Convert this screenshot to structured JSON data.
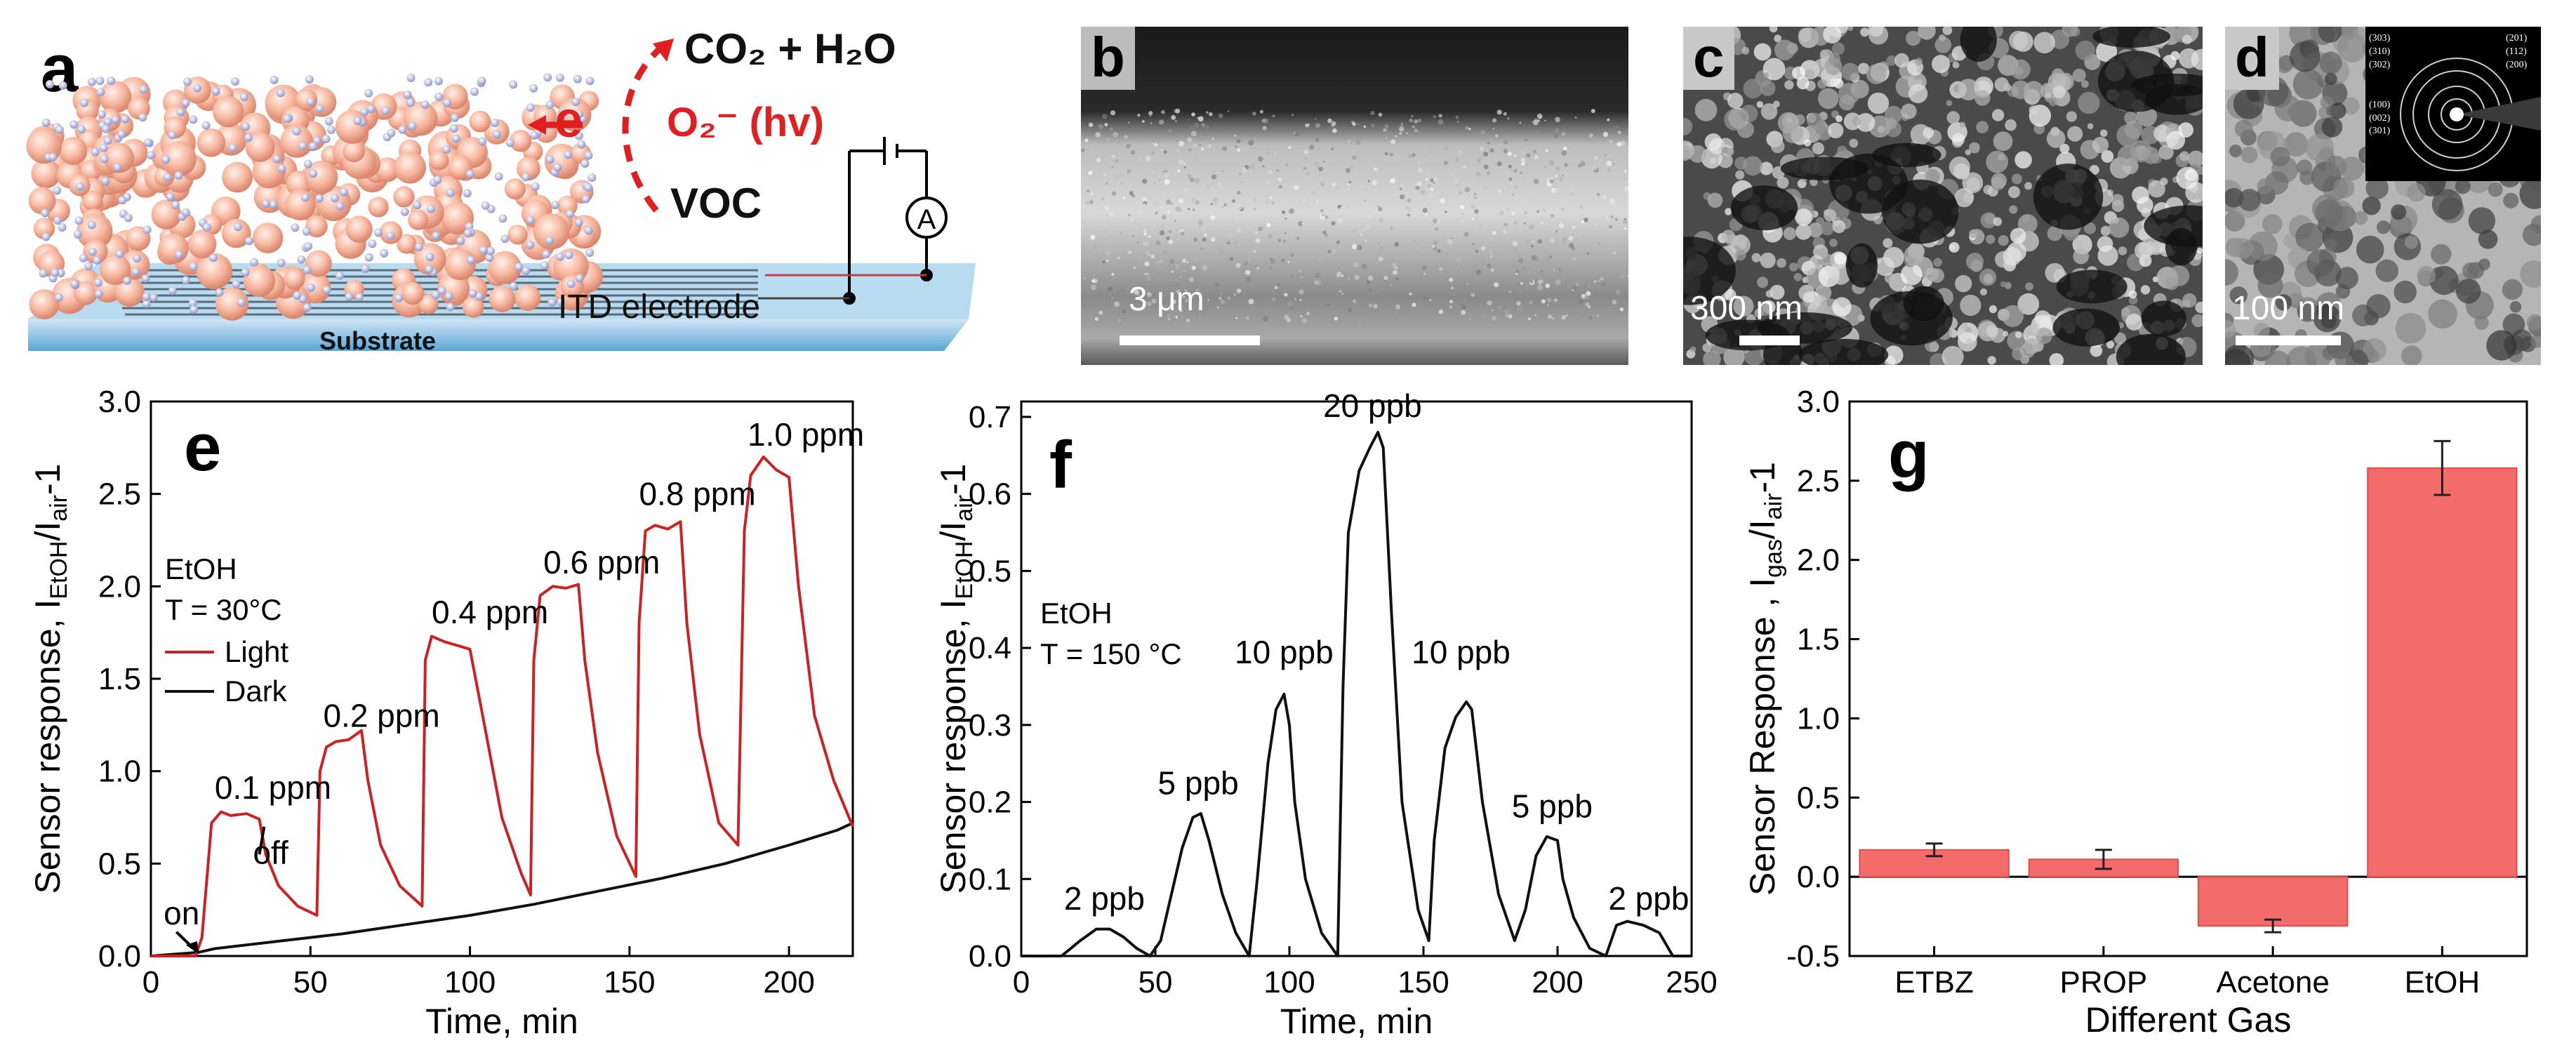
{
  "panels": {
    "a": {
      "label": "a",
      "products": "CO₂ + H₂O",
      "electron": "e",
      "superoxide": "O₂⁻ (hv)",
      "voc": "VOC",
      "ammeter": "A",
      "electrode": "ITD electrode",
      "substrate": "Substrate"
    },
    "b": {
      "label": "b",
      "scale": "3 μm"
    },
    "c": {
      "label": "c",
      "scale": "300 nm"
    },
    "d": {
      "label": "d",
      "scale": "100 nm",
      "saed_left": [
        "(303)",
        "(310)",
        "(302)",
        "(100)",
        "(002)",
        "(301)"
      ],
      "saed_right": [
        "(201)",
        "(112)",
        "(200)"
      ]
    }
  },
  "colors": {
    "light": "#cc2222",
    "dark": "#111111",
    "bar": "#f36b6b",
    "accent_red": "#e02020"
  },
  "chart_data": [
    {
      "id": "e",
      "label": "e",
      "type": "line",
      "xlabel": "Time, min",
      "ylabel": "Sensor response, I_EtOH/I_air-1",
      "xlim": [
        0,
        220
      ],
      "ylim": [
        0,
        3.0
      ],
      "xticks": [
        0,
        50,
        100,
        150,
        200
      ],
      "yticks": [
        0.0,
        0.5,
        1.0,
        1.5,
        2.0,
        2.5,
        3.0
      ],
      "legend_title": [
        "EtOH",
        "T = 30°C"
      ],
      "legend": [
        {
          "name": "Light",
          "color": "#cc2222"
        },
        {
          "name": "Dark",
          "color": "#111111"
        }
      ],
      "series": [
        {
          "name": "Light",
          "x": [
            0,
            14,
            16,
            19,
            22,
            25,
            30,
            34,
            36,
            40,
            46,
            52,
            53,
            55,
            58,
            62,
            66,
            68,
            72,
            78,
            85,
            86,
            88,
            92,
            96,
            100,
            104,
            110,
            116,
            119,
            120,
            122,
            126,
            130,
            134,
            136,
            140,
            146,
            152,
            153,
            155,
            158,
            162,
            166,
            168,
            172,
            178,
            184,
            186,
            188,
            192,
            196,
            200,
            203,
            208,
            214,
            220
          ],
          "y": [
            0,
            0,
            0.1,
            0.72,
            0.78,
            0.76,
            0.77,
            0.74,
            0.55,
            0.38,
            0.27,
            0.22,
            1.0,
            1.13,
            1.16,
            1.17,
            1.22,
            0.95,
            0.6,
            0.38,
            0.27,
            1.6,
            1.73,
            1.7,
            1.68,
            1.66,
            1.3,
            0.75,
            0.45,
            0.33,
            1.6,
            1.95,
            2.0,
            1.99,
            2.01,
            1.6,
            1.1,
            0.65,
            0.43,
            1.8,
            2.3,
            2.33,
            2.31,
            2.35,
            1.8,
            1.2,
            0.72,
            0.6,
            2.3,
            2.6,
            2.7,
            2.63,
            2.59,
            2.0,
            1.3,
            0.95,
            0.7
          ]
        },
        {
          "name": "Dark",
          "x": [
            0,
            15,
            20,
            40,
            60,
            80,
            100,
            120,
            140,
            160,
            180,
            200,
            215,
            220
          ],
          "y": [
            0,
            0.02,
            0.04,
            0.08,
            0.12,
            0.17,
            0.22,
            0.28,
            0.35,
            0.42,
            0.5,
            0.6,
            0.68,
            0.72
          ]
        }
      ],
      "annotations": [
        {
          "text": "0.1 ppm",
          "x": 20,
          "y": 0.85
        },
        {
          "text": "0.2 ppm",
          "x": 54,
          "y": 1.24
        },
        {
          "text": "0.4 ppm",
          "x": 88,
          "y": 1.8
        },
        {
          "text": "0.6 ppm",
          "x": 123,
          "y": 2.07
        },
        {
          "text": "0.8 ppm",
          "x": 153,
          "y": 2.44
        },
        {
          "text": "1.0 ppm",
          "x": 187,
          "y": 2.76
        },
        {
          "text": "on",
          "x": 4,
          "y": 0.17
        },
        {
          "text": "off",
          "x": 32,
          "y": 0.5
        }
      ]
    },
    {
      "id": "f",
      "label": "f",
      "type": "line",
      "xlabel": "Time, min",
      "ylabel": "Sensor response, I_EtOH/I_air-1",
      "xlim": [
        0,
        250
      ],
      "ylim": [
        0,
        0.72
      ],
      "xticks": [
        0,
        50,
        100,
        150,
        200,
        250
      ],
      "yticks": [
        0.0,
        0.1,
        0.2,
        0.3,
        0.4,
        0.5,
        0.6,
        0.7
      ],
      "legend_title": [
        "EtOH",
        "T = 150 °C"
      ],
      "series": [
        {
          "name": "",
          "x": [
            0,
            15,
            22,
            28,
            33,
            38,
            43,
            48,
            52,
            56,
            60,
            64,
            67,
            70,
            75,
            80,
            85,
            88,
            92,
            95,
            98,
            100,
            102,
            106,
            112,
            118,
            120,
            122,
            126,
            130,
            133,
            135,
            138,
            142,
            148,
            152,
            154,
            158,
            162,
            166,
            168,
            172,
            178,
            184,
            188,
            192,
            196,
            200,
            202,
            206,
            212,
            218,
            220,
            222,
            226,
            232,
            238,
            243,
            250
          ],
          "y": [
            0,
            0.0,
            0.02,
            0.035,
            0.035,
            0.025,
            0.01,
            0.0,
            0.02,
            0.08,
            0.14,
            0.18,
            0.185,
            0.15,
            0.08,
            0.03,
            0.0,
            0.1,
            0.25,
            0.32,
            0.34,
            0.3,
            0.2,
            0.1,
            0.03,
            0.0,
            0.35,
            0.55,
            0.63,
            0.66,
            0.68,
            0.66,
            0.45,
            0.2,
            0.06,
            0.02,
            0.15,
            0.27,
            0.31,
            0.33,
            0.32,
            0.2,
            0.08,
            0.02,
            0.06,
            0.13,
            0.155,
            0.15,
            0.1,
            0.05,
            0.01,
            0.0,
            0.02,
            0.04,
            0.045,
            0.04,
            0.03,
            0.0,
            0.0
          ]
        }
      ],
      "annotations": [
        {
          "text": "2 ppb",
          "x": 31,
          "y": 0.06
        },
        {
          "text": "5 ppb",
          "x": 66,
          "y": 0.21
        },
        {
          "text": "10 ppb",
          "x": 98,
          "y": 0.38
        },
        {
          "text": "20 ppb",
          "x": 131,
          "y": 0.7
        },
        {
          "text": "10 ppb",
          "x": 164,
          "y": 0.38
        },
        {
          "text": "5 ppb",
          "x": 198,
          "y": 0.18
        },
        {
          "text": "2 ppb",
          "x": 234,
          "y": 0.06
        }
      ]
    },
    {
      "id": "g",
      "label": "g",
      "type": "bar",
      "xlabel": "Different Gas",
      "ylabel": "Sensor Response , I_gas/I_air-1",
      "categories": [
        "ETBZ",
        "PROP",
        "Acetone",
        "EtOH"
      ],
      "values": [
        0.17,
        0.11,
        -0.31,
        2.58
      ],
      "errors": [
        0.04,
        0.06,
        0.04,
        0.17
      ],
      "ylim": [
        -0.5,
        3.0
      ],
      "yticks": [
        -0.5,
        0.0,
        0.5,
        1.0,
        1.5,
        2.0,
        2.5,
        3.0
      ]
    }
  ]
}
